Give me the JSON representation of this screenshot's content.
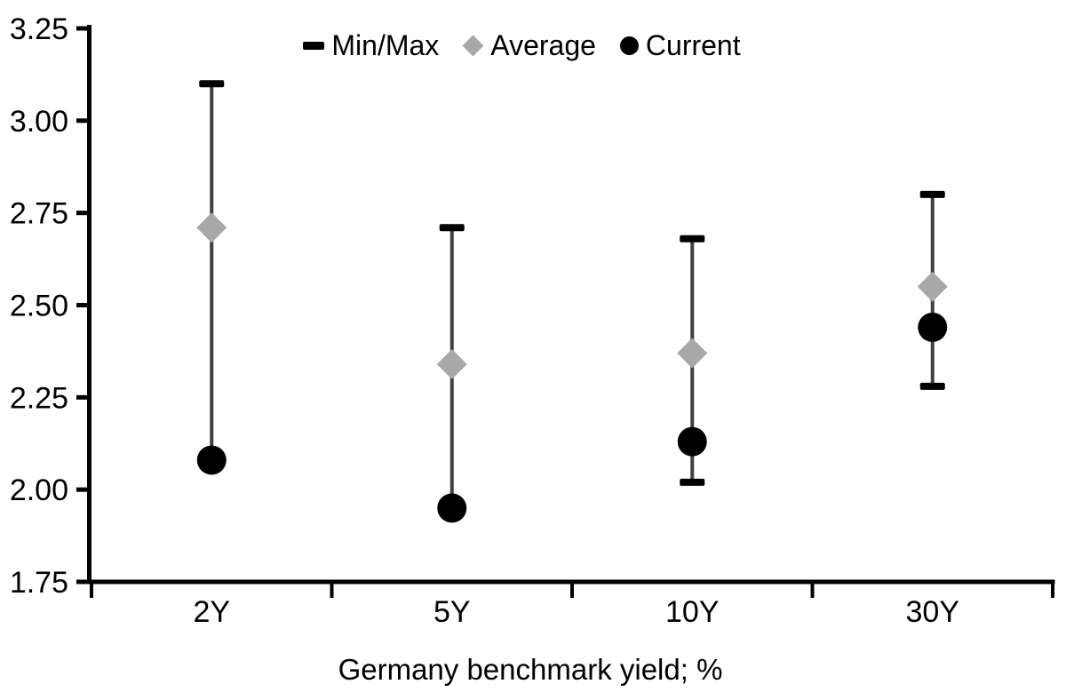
{
  "chart_data": {
    "type": "scatter",
    "title": "",
    "xlabel": "Germany benchmark yield; %",
    "ylabel": "",
    "categories": [
      "2Y",
      "5Y",
      "10Y",
      "30Y"
    ],
    "ylim": [
      1.75,
      3.25
    ],
    "y_ticks": [
      "3.25",
      "3.00",
      "2.75",
      "2.50",
      "2.25",
      "2.00",
      "1.75"
    ],
    "grid": false,
    "legend_position": "top",
    "legend": [
      {
        "label": "Min/Max",
        "marker": "dash-icon",
        "color": "#000000"
      },
      {
        "label": "Average",
        "marker": "diamond-icon",
        "color": "#a8a8a8"
      },
      {
        "label": "Current",
        "marker": "circle-icon",
        "color": "#000000"
      }
    ],
    "series": [
      {
        "name": "Max",
        "values": [
          3.1,
          2.71,
          2.68,
          2.8
        ]
      },
      {
        "name": "Min",
        "values": [
          2.08,
          1.95,
          2.02,
          2.28
        ]
      },
      {
        "name": "Average",
        "values": [
          2.71,
          2.34,
          2.37,
          2.55
        ]
      },
      {
        "name": "Current",
        "values": [
          2.08,
          1.95,
          2.13,
          2.44
        ]
      }
    ]
  },
  "colors": {
    "background": "#ffffff",
    "axis": "#000000",
    "whisker": "#404040",
    "cap": "#000000",
    "average_marker": "#a8a8a8",
    "current_marker": "#000000",
    "text": "#000000"
  }
}
